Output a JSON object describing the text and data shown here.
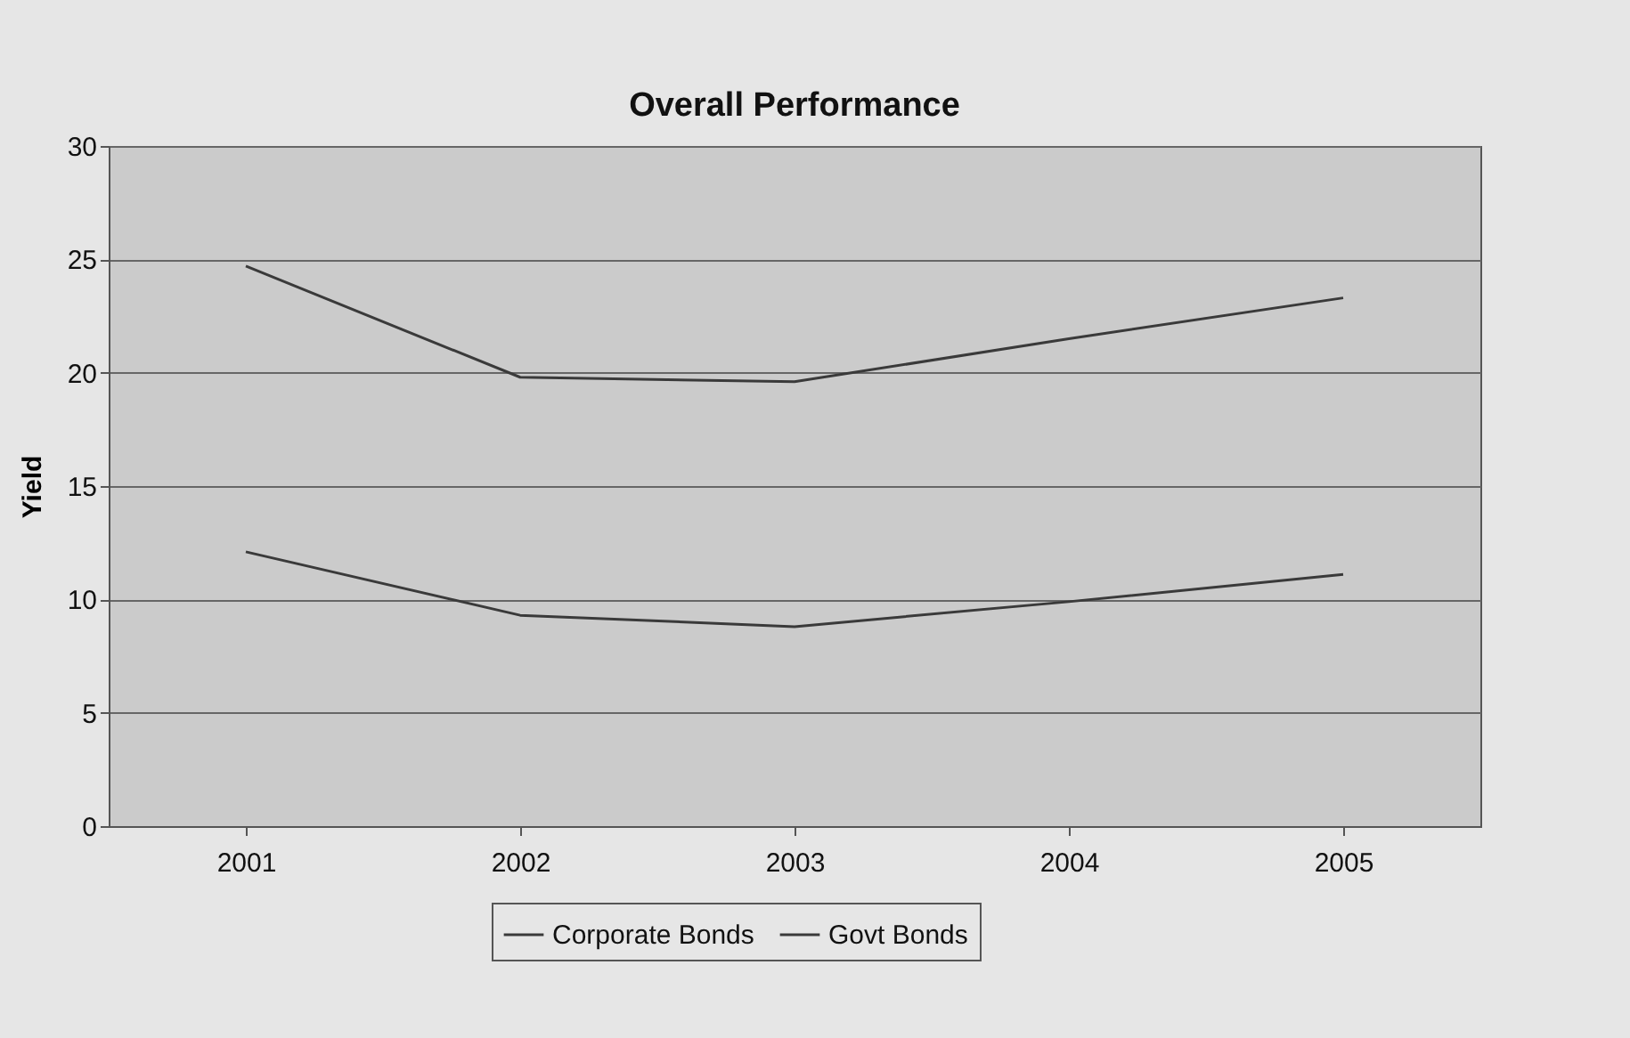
{
  "chart_data": {
    "type": "line",
    "title": "Overall Performance",
    "ylabel": "Yield",
    "categories": [
      "2001",
      "2002",
      "2003",
      "2004",
      "2005"
    ],
    "series": [
      {
        "name": "Corporate Bonds",
        "color": "#3a3a3a",
        "values": [
          24.7,
          19.8,
          19.6,
          21.5,
          23.3
        ]
      },
      {
        "name": "Govt Bonds",
        "color": "#3a3a3a",
        "values": [
          12.1,
          9.3,
          8.8,
          9.9,
          11.1
        ]
      }
    ],
    "ylim": [
      0,
      30
    ],
    "yticks": [
      0,
      5,
      10,
      15,
      20,
      25,
      30
    ],
    "grid": "y",
    "legend": "bottom",
    "marker": "none",
    "line_style": "solid"
  }
}
